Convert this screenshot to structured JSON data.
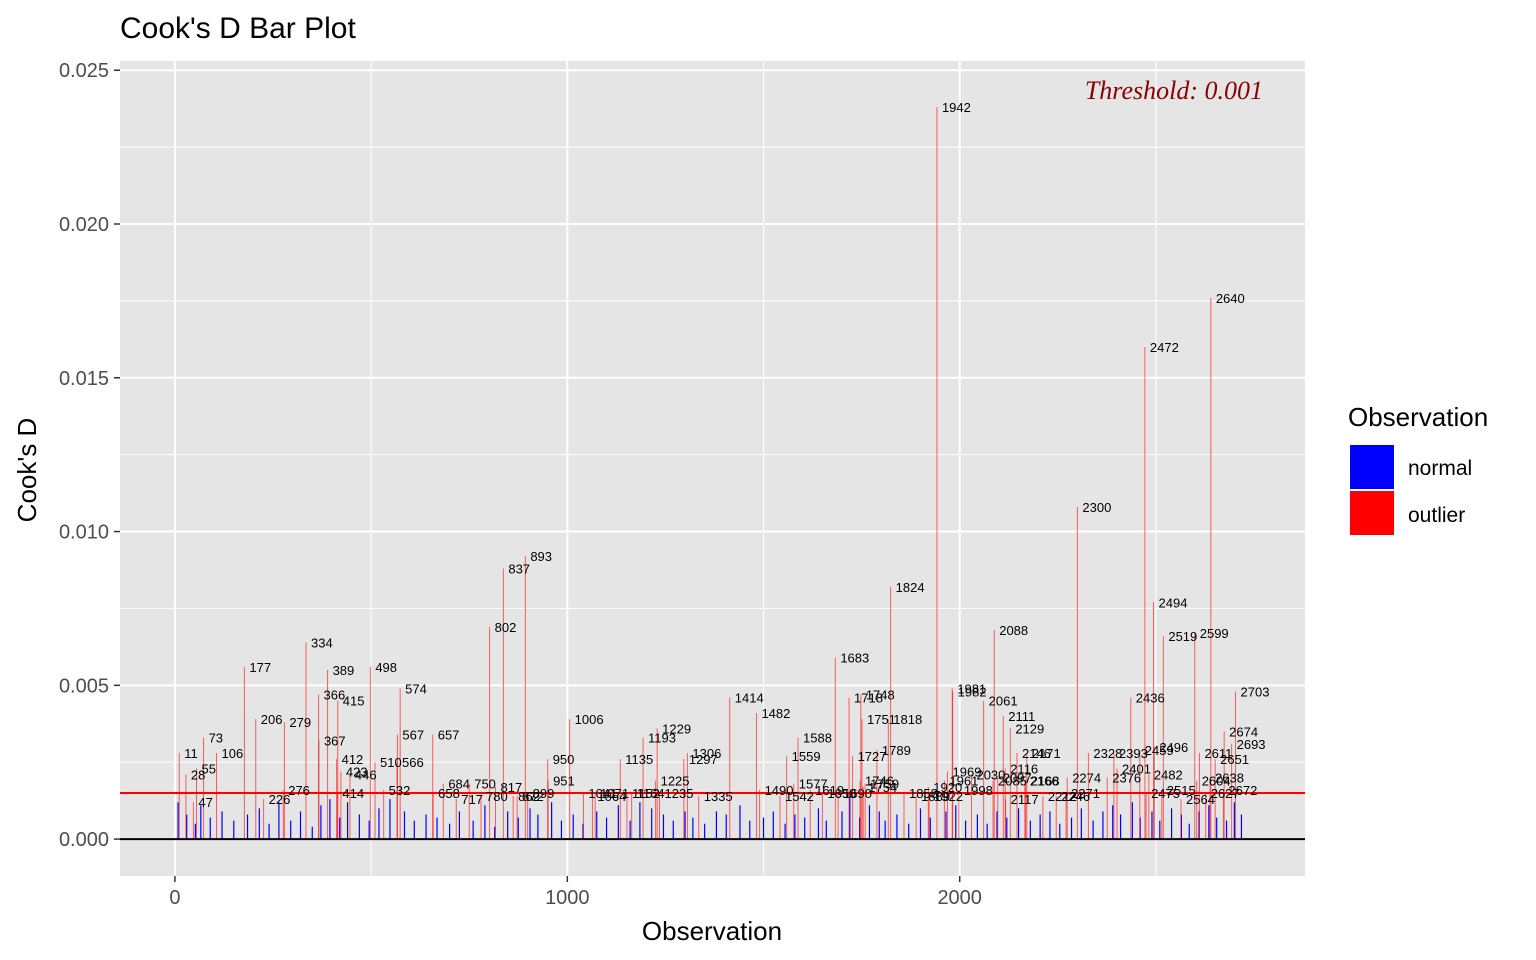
{
  "chart_data": {
    "type": "bar",
    "title": "Cook's D Bar Plot",
    "xlabel": "Observation",
    "ylabel": "Cook's D",
    "xlim": [
      -140,
      2880
    ],
    "ylim": [
      -0.0012,
      0.0253
    ],
    "x_ticks": [
      0,
      1000,
      2000
    ],
    "x_tick_labels": [
      "0",
      "1000",
      "2000"
    ],
    "y_ticks": [
      0,
      0.005,
      0.01,
      0.015,
      0.02,
      0.025
    ],
    "y_tick_labels": [
      "0.000",
      "0.005",
      "0.010",
      "0.015",
      "0.020",
      "0.025"
    ],
    "threshold": 0.0015,
    "threshold_label": "Threshold: 0.001",
    "n_observations": 2730,
    "legend": {
      "title": "Observation",
      "placement": "right",
      "entries": [
        {
          "name": "normal",
          "color": "#0000ff"
        },
        {
          "name": "outlier",
          "color": "#ff0000"
        }
      ]
    },
    "colors": {
      "panel": "#e5e5e5",
      "grid": "#ffffff",
      "normal": "#0000ff",
      "outlier": "#ff0000",
      "threshold_line": "#ff0000",
      "zero_line": "#000000",
      "threshold_text": "#8b0000"
    },
    "normal_bars": [
      {
        "x": 8,
        "y": 0.0012
      },
      {
        "x": 30,
        "y": 0.0008
      },
      {
        "x": 52,
        "y": 0.0005
      },
      {
        "x": 66,
        "y": 0.0011
      },
      {
        "x": 90,
        "y": 0.0007
      },
      {
        "x": 120,
        "y": 0.0009
      },
      {
        "x": 150,
        "y": 0.0006
      },
      {
        "x": 185,
        "y": 0.0008
      },
      {
        "x": 215,
        "y": 0.001
      },
      {
        "x": 240,
        "y": 0.0005
      },
      {
        "x": 265,
        "y": 0.0012
      },
      {
        "x": 295,
        "y": 0.0006
      },
      {
        "x": 320,
        "y": 0.0009
      },
      {
        "x": 350,
        "y": 0.0004
      },
      {
        "x": 372,
        "y": 0.0011
      },
      {
        "x": 395,
        "y": 0.0013
      },
      {
        "x": 420,
        "y": 0.0007
      },
      {
        "x": 440,
        "y": 0.0012
      },
      {
        "x": 470,
        "y": 0.0008
      },
      {
        "x": 495,
        "y": 0.0006
      },
      {
        "x": 520,
        "y": 0.001
      },
      {
        "x": 548,
        "y": 0.0013
      },
      {
        "x": 585,
        "y": 0.0009
      },
      {
        "x": 610,
        "y": 0.0006
      },
      {
        "x": 640,
        "y": 0.0008
      },
      {
        "x": 668,
        "y": 0.0007
      },
      {
        "x": 700,
        "y": 0.0005
      },
      {
        "x": 725,
        "y": 0.0009
      },
      {
        "x": 760,
        "y": 0.0006
      },
      {
        "x": 790,
        "y": 0.0011
      },
      {
        "x": 815,
        "y": 0.0004
      },
      {
        "x": 848,
        "y": 0.0009
      },
      {
        "x": 875,
        "y": 0.0007
      },
      {
        "x": 905,
        "y": 0.001
      },
      {
        "x": 925,
        "y": 0.0008
      },
      {
        "x": 960,
        "y": 0.0012
      },
      {
        "x": 985,
        "y": 0.0006
      },
      {
        "x": 1015,
        "y": 0.0008
      },
      {
        "x": 1040,
        "y": 0.0005
      },
      {
        "x": 1075,
        "y": 0.0009
      },
      {
        "x": 1100,
        "y": 0.0007
      },
      {
        "x": 1130,
        "y": 0.0011
      },
      {
        "x": 1160,
        "y": 0.0006
      },
      {
        "x": 1185,
        "y": 0.0012
      },
      {
        "x": 1215,
        "y": 0.001
      },
      {
        "x": 1245,
        "y": 0.0008
      },
      {
        "x": 1270,
        "y": 0.0006
      },
      {
        "x": 1300,
        "y": 0.0009
      },
      {
        "x": 1320,
        "y": 0.0007
      },
      {
        "x": 1350,
        "y": 0.0005
      },
      {
        "x": 1380,
        "y": 0.0009
      },
      {
        "x": 1405,
        "y": 0.0008
      },
      {
        "x": 1440,
        "y": 0.0011
      },
      {
        "x": 1465,
        "y": 0.0006
      },
      {
        "x": 1500,
        "y": 0.0007
      },
      {
        "x": 1525,
        "y": 0.0009
      },
      {
        "x": 1555,
        "y": 0.0005
      },
      {
        "x": 1580,
        "y": 0.0008
      },
      {
        "x": 1605,
        "y": 0.0007
      },
      {
        "x": 1640,
        "y": 0.001
      },
      {
        "x": 1660,
        "y": 0.0006
      },
      {
        "x": 1700,
        "y": 0.0009
      },
      {
        "x": 1720,
        "y": 0.0014
      },
      {
        "x": 1745,
        "y": 0.0007
      },
      {
        "x": 1770,
        "y": 0.0011
      },
      {
        "x": 1795,
        "y": 0.0009
      },
      {
        "x": 1810,
        "y": 0.0006
      },
      {
        "x": 1840,
        "y": 0.0008
      },
      {
        "x": 1870,
        "y": 0.0005
      },
      {
        "x": 1900,
        "y": 0.001
      },
      {
        "x": 1925,
        "y": 0.0007
      },
      {
        "x": 1965,
        "y": 0.0009
      },
      {
        "x": 1990,
        "y": 0.0011
      },
      {
        "x": 2015,
        "y": 0.0006
      },
      {
        "x": 2045,
        "y": 0.0008
      },
      {
        "x": 2070,
        "y": 0.0005
      },
      {
        "x": 2095,
        "y": 0.0009
      },
      {
        "x": 2120,
        "y": 0.0007
      },
      {
        "x": 2150,
        "y": 0.001
      },
      {
        "x": 2180,
        "y": 0.0006
      },
      {
        "x": 2205,
        "y": 0.0008
      },
      {
        "x": 2230,
        "y": 0.0009
      },
      {
        "x": 2255,
        "y": 0.0005
      },
      {
        "x": 2285,
        "y": 0.0007
      },
      {
        "x": 2310,
        "y": 0.001
      },
      {
        "x": 2340,
        "y": 0.0006
      },
      {
        "x": 2365,
        "y": 0.0009
      },
      {
        "x": 2390,
        "y": 0.0011
      },
      {
        "x": 2410,
        "y": 0.0008
      },
      {
        "x": 2440,
        "y": 0.0012
      },
      {
        "x": 2460,
        "y": 0.0007
      },
      {
        "x": 2490,
        "y": 0.0009
      },
      {
        "x": 2510,
        "y": 0.0006
      },
      {
        "x": 2540,
        "y": 0.001
      },
      {
        "x": 2565,
        "y": 0.0008
      },
      {
        "x": 2585,
        "y": 0.0005
      },
      {
        "x": 2610,
        "y": 0.0009
      },
      {
        "x": 2635,
        "y": 0.0011
      },
      {
        "x": 2655,
        "y": 0.0007
      },
      {
        "x": 2680,
        "y": 0.0006
      },
      {
        "x": 2700,
        "y": 0.0012
      },
      {
        "x": 2718,
        "y": 0.0008
      }
    ],
    "outliers": [
      {
        "x": 11,
        "y": 0.0028,
        "label": "11"
      },
      {
        "x": 28,
        "y": 0.0021,
        "label": "28"
      },
      {
        "x": 47,
        "y": 0.0012,
        "label": "47"
      },
      {
        "x": 55,
        "y": 0.0023,
        "label": "55"
      },
      {
        "x": 73,
        "y": 0.0033,
        "label": "73"
      },
      {
        "x": 106,
        "y": 0.0028,
        "label": "106"
      },
      {
        "x": 177,
        "y": 0.0056,
        "label": "177"
      },
      {
        "x": 206,
        "y": 0.0039,
        "label": "206"
      },
      {
        "x": 226,
        "y": 0.0013,
        "label": "226"
      },
      {
        "x": 276,
        "y": 0.0016,
        "label": "276"
      },
      {
        "x": 279,
        "y": 0.0038,
        "label": "279"
      },
      {
        "x": 334,
        "y": 0.0064,
        "label": "334"
      },
      {
        "x": 366,
        "y": 0.0047,
        "label": "366"
      },
      {
        "x": 367,
        "y": 0.0032,
        "label": "367"
      },
      {
        "x": 389,
        "y": 0.0055,
        "label": "389"
      },
      {
        "x": 412,
        "y": 0.0026,
        "label": "412"
      },
      {
        "x": 414,
        "y": 0.0015,
        "label": "414"
      },
      {
        "x": 415,
        "y": 0.0045,
        "label": "415"
      },
      {
        "x": 423,
        "y": 0.0022,
        "label": "423"
      },
      {
        "x": 446,
        "y": 0.0021,
        "label": "446"
      },
      {
        "x": 498,
        "y": 0.0056,
        "label": "498"
      },
      {
        "x": 510,
        "y": 0.0025,
        "label": "510"
      },
      {
        "x": 532,
        "y": 0.0016,
        "label": "532"
      },
      {
        "x": 566,
        "y": 0.0025,
        "label": "566"
      },
      {
        "x": 567,
        "y": 0.0034,
        "label": "567"
      },
      {
        "x": 574,
        "y": 0.0049,
        "label": "574"
      },
      {
        "x": 657,
        "y": 0.0034,
        "label": "657"
      },
      {
        "x": 658,
        "y": 0.0015,
        "label": "658"
      },
      {
        "x": 684,
        "y": 0.0018,
        "label": "684"
      },
      {
        "x": 717,
        "y": 0.0013,
        "label": "717"
      },
      {
        "x": 750,
        "y": 0.0018,
        "label": "750"
      },
      {
        "x": 780,
        "y": 0.0014,
        "label": "780"
      },
      {
        "x": 802,
        "y": 0.0069,
        "label": "802"
      },
      {
        "x": 817,
        "y": 0.0017,
        "label": "817"
      },
      {
        "x": 837,
        "y": 0.0088,
        "label": "837"
      },
      {
        "x": 862,
        "y": 0.0014,
        "label": "862"
      },
      {
        "x": 872,
        "y": 0.0014,
        "label": "872"
      },
      {
        "x": 893,
        "y": 0.0092,
        "label": "893"
      },
      {
        "x": 899,
        "y": 0.0015,
        "label": "899"
      },
      {
        "x": 950,
        "y": 0.0026,
        "label": "950"
      },
      {
        "x": 951,
        "y": 0.0019,
        "label": "951"
      },
      {
        "x": 1006,
        "y": 0.0039,
        "label": "1006"
      },
      {
        "x": 1041,
        "y": 0.0015,
        "label": "1041"
      },
      {
        "x": 1064,
        "y": 0.0014,
        "label": "1064"
      },
      {
        "x": 1071,
        "y": 0.0015,
        "label": "1071"
      },
      {
        "x": 1135,
        "y": 0.0026,
        "label": "1135"
      },
      {
        "x": 1152,
        "y": 0.0015,
        "label": "1152"
      },
      {
        "x": 1164,
        "y": 0.0015,
        "label": "1164"
      },
      {
        "x": 1193,
        "y": 0.0033,
        "label": "1193"
      },
      {
        "x": 1225,
        "y": 0.0019,
        "label": "1225"
      },
      {
        "x": 1229,
        "y": 0.0036,
        "label": "1229"
      },
      {
        "x": 1235,
        "y": 0.0015,
        "label": "1235"
      },
      {
        "x": 1297,
        "y": 0.0026,
        "label": "1297"
      },
      {
        "x": 1306,
        "y": 0.0028,
        "label": "1306"
      },
      {
        "x": 1335,
        "y": 0.0014,
        "label": "1335"
      },
      {
        "x": 1414,
        "y": 0.0046,
        "label": "1414"
      },
      {
        "x": 1482,
        "y": 0.0041,
        "label": "1482"
      },
      {
        "x": 1490,
        "y": 0.0016,
        "label": "1490"
      },
      {
        "x": 1542,
        "y": 0.0014,
        "label": "1542"
      },
      {
        "x": 1559,
        "y": 0.0027,
        "label": "1559"
      },
      {
        "x": 1577,
        "y": 0.0018,
        "label": "1577"
      },
      {
        "x": 1588,
        "y": 0.0033,
        "label": "1588"
      },
      {
        "x": 1619,
        "y": 0.0016,
        "label": "1619"
      },
      {
        "x": 1650,
        "y": 0.0015,
        "label": "1650"
      },
      {
        "x": 1683,
        "y": 0.0059,
        "label": "1683"
      },
      {
        "x": 1690,
        "y": 0.0015,
        "label": "1690"
      },
      {
        "x": 1718,
        "y": 0.0046,
        "label": "1718"
      },
      {
        "x": 1727,
        "y": 0.0027,
        "label": "1727"
      },
      {
        "x": 1746,
        "y": 0.0019,
        "label": "1746"
      },
      {
        "x": 1748,
        "y": 0.0047,
        "label": "1748"
      },
      {
        "x": 1751,
        "y": 0.0039,
        "label": "1751"
      },
      {
        "x": 1754,
        "y": 0.0017,
        "label": "1754"
      },
      {
        "x": 1759,
        "y": 0.0018,
        "label": "1759"
      },
      {
        "x": 1789,
        "y": 0.0029,
        "label": "1789"
      },
      {
        "x": 1818,
        "y": 0.0039,
        "label": "1818"
      },
      {
        "x": 1824,
        "y": 0.0082,
        "label": "1824"
      },
      {
        "x": 1858,
        "y": 0.0015,
        "label": "1858"
      },
      {
        "x": 1889,
        "y": 0.0014,
        "label": "1889"
      },
      {
        "x": 1920,
        "y": 0.0017,
        "label": "1920"
      },
      {
        "x": 1922,
        "y": 0.0014,
        "label": "1922"
      },
      {
        "x": 1942,
        "y": 0.0238,
        "label": "1942"
      },
      {
        "x": 1961,
        "y": 0.0019,
        "label": "1961"
      },
      {
        "x": 1969,
        "y": 0.0022,
        "label": "1969"
      },
      {
        "x": 1981,
        "y": 0.0049,
        "label": "1981"
      },
      {
        "x": 1982,
        "y": 0.0048,
        "label": "1982"
      },
      {
        "x": 1998,
        "y": 0.0016,
        "label": "1998"
      },
      {
        "x": 2030,
        "y": 0.0021,
        "label": "2030"
      },
      {
        "x": 2061,
        "y": 0.0045,
        "label": "2061"
      },
      {
        "x": 2085,
        "y": 0.0019,
        "label": "2085"
      },
      {
        "x": 2088,
        "y": 0.0068,
        "label": "2088"
      },
      {
        "x": 2097,
        "y": 0.002,
        "label": "2097"
      },
      {
        "x": 2111,
        "y": 0.004,
        "label": "2111"
      },
      {
        "x": 2116,
        "y": 0.0023,
        "label": "2116"
      },
      {
        "x": 2117,
        "y": 0.0013,
        "label": "2117"
      },
      {
        "x": 2129,
        "y": 0.0036,
        "label": "2129"
      },
      {
        "x": 2146,
        "y": 0.0028,
        "label": "2146"
      },
      {
        "x": 2166,
        "y": 0.0019,
        "label": "2166"
      },
      {
        "x": 2168,
        "y": 0.0019,
        "label": "2168"
      },
      {
        "x": 2171,
        "y": 0.0028,
        "label": "2171"
      },
      {
        "x": 2212,
        "y": 0.0014,
        "label": "2212"
      },
      {
        "x": 2246,
        "y": 0.0014,
        "label": "2246"
      },
      {
        "x": 2271,
        "y": 0.0015,
        "label": "2271"
      },
      {
        "x": 2274,
        "y": 0.002,
        "label": "2274"
      },
      {
        "x": 2300,
        "y": 0.0108,
        "label": "2300"
      },
      {
        "x": 2328,
        "y": 0.0028,
        "label": "2328"
      },
      {
        "x": 2376,
        "y": 0.002,
        "label": "2376"
      },
      {
        "x": 2393,
        "y": 0.0028,
        "label": "2393"
      },
      {
        "x": 2401,
        "y": 0.0023,
        "label": "2401"
      },
      {
        "x": 2436,
        "y": 0.0046,
        "label": "2436"
      },
      {
        "x": 2459,
        "y": 0.0029,
        "label": "2459"
      },
      {
        "x": 2472,
        "y": 0.016,
        "label": "2472"
      },
      {
        "x": 2475,
        "y": 0.0015,
        "label": "2475"
      },
      {
        "x": 2482,
        "y": 0.0021,
        "label": "2482"
      },
      {
        "x": 2494,
        "y": 0.0077,
        "label": "2494"
      },
      {
        "x": 2496,
        "y": 0.003,
        "label": "2496"
      },
      {
        "x": 2515,
        "y": 0.0016,
        "label": "2515"
      },
      {
        "x": 2519,
        "y": 0.0066,
        "label": "2519"
      },
      {
        "x": 2564,
        "y": 0.0013,
        "label": "2564"
      },
      {
        "x": 2599,
        "y": 0.0067,
        "label": "2599"
      },
      {
        "x": 2604,
        "y": 0.0019,
        "label": "2604"
      },
      {
        "x": 2611,
        "y": 0.0028,
        "label": "2611"
      },
      {
        "x": 2627,
        "y": 0.0015,
        "label": "2627"
      },
      {
        "x": 2638,
        "y": 0.002,
        "label": "2638"
      },
      {
        "x": 2640,
        "y": 0.0176,
        "label": "2640"
      },
      {
        "x": 2651,
        "y": 0.0026,
        "label": "2651"
      },
      {
        "x": 2672,
        "y": 0.0016,
        "label": "2672"
      },
      {
        "x": 2674,
        "y": 0.0035,
        "label": "2674"
      },
      {
        "x": 2693,
        "y": 0.0031,
        "label": "2693"
      },
      {
        "x": 2703,
        "y": 0.0048,
        "label": "2703"
      }
    ]
  }
}
